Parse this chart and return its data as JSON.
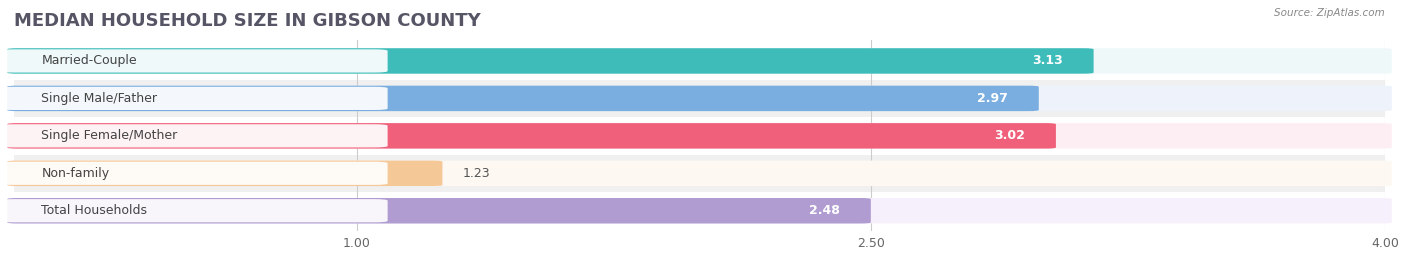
{
  "title": "MEDIAN HOUSEHOLD SIZE IN GIBSON COUNTY",
  "source": "Source: ZipAtlas.com",
  "categories": [
    "Married-Couple",
    "Single Male/Father",
    "Single Female/Mother",
    "Non-family",
    "Total Households"
  ],
  "values": [
    3.13,
    2.97,
    3.02,
    1.23,
    2.48
  ],
  "bar_colors": [
    "#3dbcba",
    "#7aaee0",
    "#f0607a",
    "#f5c898",
    "#b09cd0"
  ],
  "bg_colors": [
    "#eff8f8",
    "#eef3fb",
    "#fdeef3",
    "#fdf8f2",
    "#f5f0fb"
  ],
  "xlim": [
    0.0,
    4.0
  ],
  "xstart": 0.0,
  "xticks": [
    1.0,
    2.5,
    4.0
  ],
  "title_fontsize": 13,
  "label_fontsize": 9,
  "value_fontsize": 9,
  "bar_height": 0.62,
  "background_color": "#ffffff",
  "strip_color": "#f0f0f0"
}
